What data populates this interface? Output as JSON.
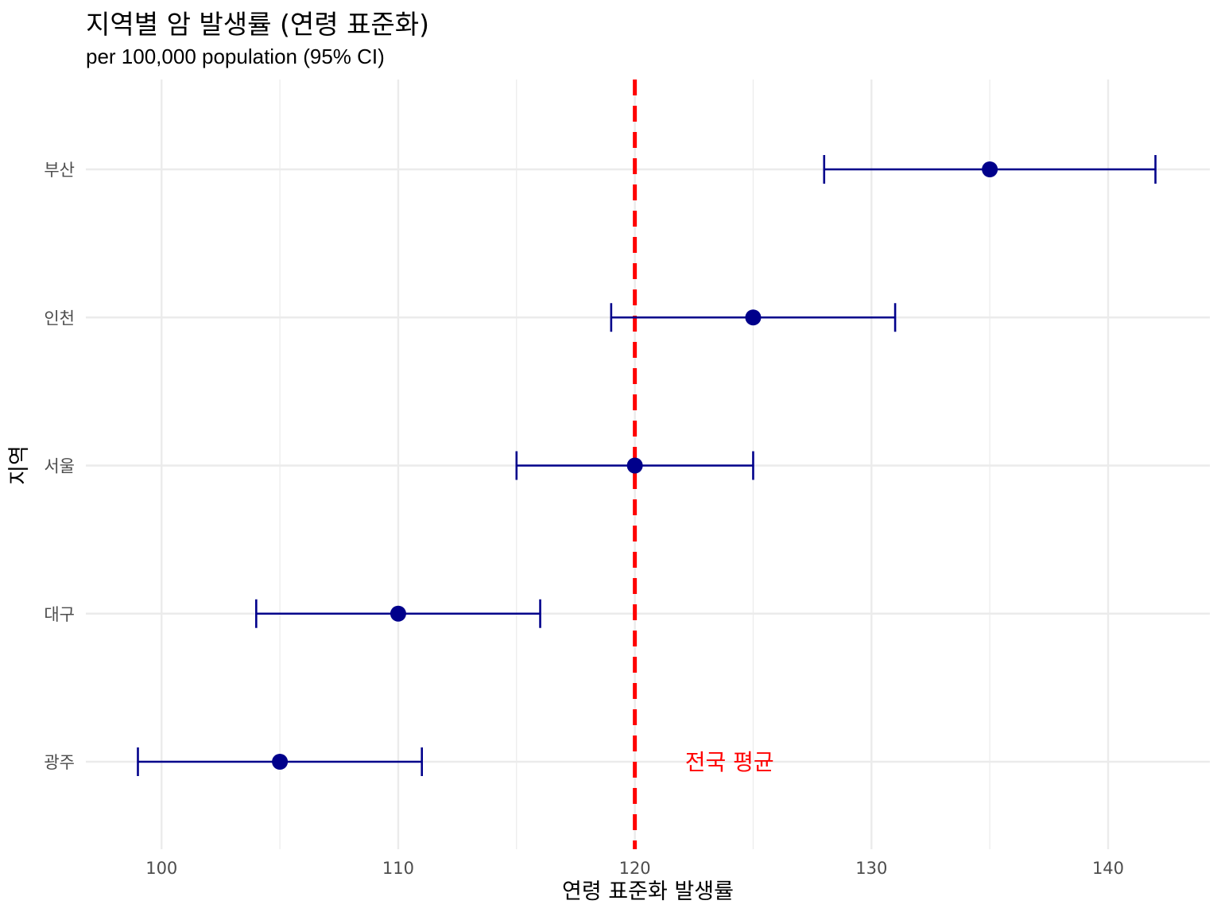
{
  "chart_data": {
    "type": "scatter",
    "title": "지역별 암 발생률 (연령 표준화)",
    "subtitle": "per 100,000 population (95% CI)",
    "xlabel": "연령 표준화 발생률",
    "ylabel": "지역",
    "xlim": [
      96.8,
      144.3
    ],
    "x_ticks": [
      100,
      110,
      120,
      130,
      140
    ],
    "categories": [
      "부산",
      "인천",
      "서울",
      "대구",
      "광주"
    ],
    "series": [
      {
        "points": [
          {
            "region": "부산",
            "estimate": 135,
            "lower": 128,
            "upper": 142
          },
          {
            "region": "인천",
            "estimate": 125,
            "lower": 119,
            "upper": 131
          },
          {
            "region": "서울",
            "estimate": 120,
            "lower": 115,
            "upper": 125
          },
          {
            "region": "대구",
            "estimate": 110,
            "lower": 104,
            "upper": 116
          },
          {
            "region": "광주",
            "estimate": 105,
            "lower": 99,
            "upper": 111
          }
        ]
      }
    ],
    "reference_line": {
      "x": 120,
      "label": "전국 평균",
      "label_x": 124,
      "label_region": "광주"
    },
    "grid": true,
    "colors": {
      "points": "#00008B",
      "reference": "#FF0000",
      "grid": "#EBEBEB",
      "tick_text": "#4D4D4D"
    }
  }
}
